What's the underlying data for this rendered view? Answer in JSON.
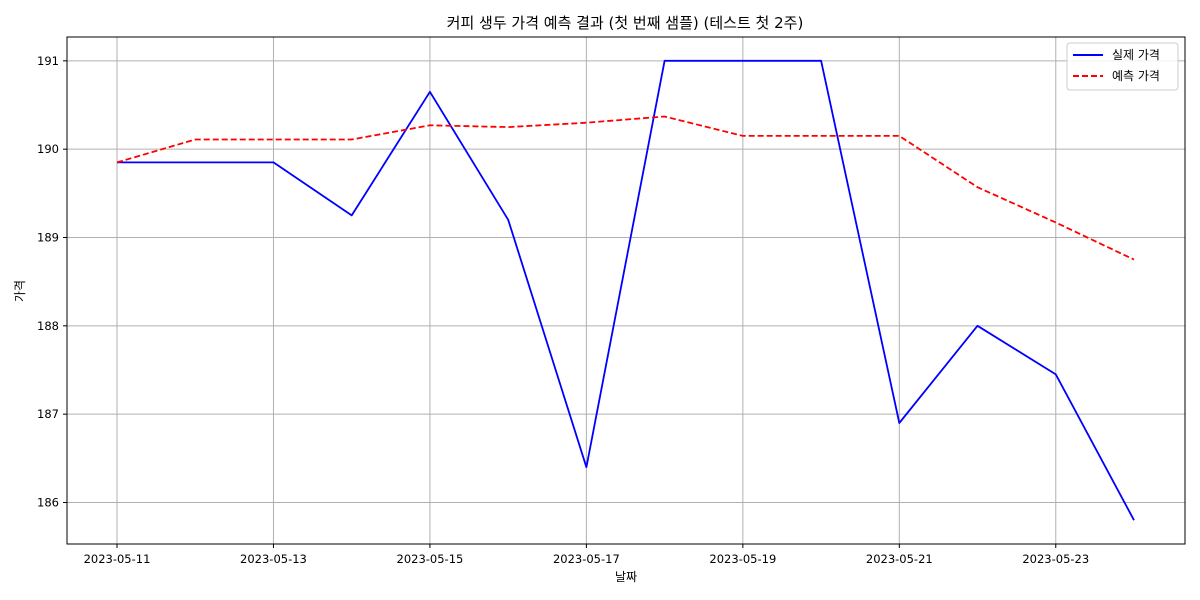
{
  "chart_data": {
    "type": "line",
    "title": "커피 생두 가격 예측 결과 (첫 번째 샘플) (테스트 첫 2주)",
    "xlabel": "날짜",
    "ylabel": "가격",
    "x": [
      "2023-05-11",
      "2023-05-12",
      "2023-05-13",
      "2023-05-14",
      "2023-05-15",
      "2023-05-16",
      "2023-05-17",
      "2023-05-18",
      "2023-05-19",
      "2023-05-20",
      "2023-05-21",
      "2023-05-22",
      "2023-05-23",
      "2023-05-24"
    ],
    "x_tick_labels": [
      "2023-05-11",
      "2023-05-13",
      "2023-05-15",
      "2023-05-17",
      "2023-05-19",
      "2023-05-21",
      "2023-05-23"
    ],
    "y_ticks": [
      186,
      187,
      188,
      189,
      190,
      191
    ],
    "ylim": [
      185.53,
      191.27
    ],
    "grid": true,
    "legend_position": "top-right",
    "series": [
      {
        "name": "실제 가격",
        "color": "#0000ff",
        "style": "solid",
        "values": [
          189.85,
          189.85,
          189.85,
          189.25,
          190.65,
          189.2,
          186.4,
          191.0,
          191.0,
          191.0,
          186.9,
          188.0,
          187.45,
          185.8
        ]
      },
      {
        "name": "예측 가격",
        "color": "#ff0000",
        "style": "dashed",
        "values": [
          189.85,
          190.11,
          190.11,
          190.11,
          190.27,
          190.25,
          190.3,
          190.37,
          190.15,
          190.15,
          190.15,
          189.57,
          189.17,
          188.75
        ]
      }
    ]
  }
}
